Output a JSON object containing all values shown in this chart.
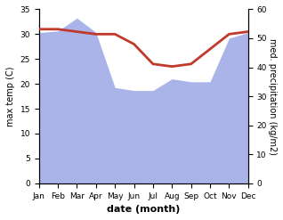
{
  "months": [
    "Jan",
    "Feb",
    "Mar",
    "Apr",
    "May",
    "Jun",
    "Jul",
    "Aug",
    "Sep",
    "Oct",
    "Nov",
    "Dec"
  ],
  "temperature": [
    31.0,
    31.0,
    30.5,
    30.0,
    30.0,
    28.0,
    24.0,
    23.5,
    24.0,
    27.0,
    30.0,
    30.5
  ],
  "precipitation": [
    52.0,
    52.5,
    57.0,
    52.0,
    33.0,
    32.0,
    32.0,
    36.0,
    35.0,
    35.0,
    50.0,
    52.0
  ],
  "temp_color": "#c0392b",
  "precip_color": "#aab4e8",
  "precip_edge_color": "#8090cc",
  "temp_ylim": [
    0,
    35
  ],
  "precip_ylim": [
    0,
    60
  ],
  "temp_yticks": [
    0,
    5,
    10,
    15,
    20,
    25,
    30,
    35
  ],
  "precip_yticks": [
    0,
    10,
    20,
    30,
    40,
    50,
    60
  ],
  "xlabel": "date (month)",
  "ylabel_left": "max temp (C)",
  "ylabel_right": "med. precipitation (kg/m2)",
  "background_color": "#ffffff"
}
